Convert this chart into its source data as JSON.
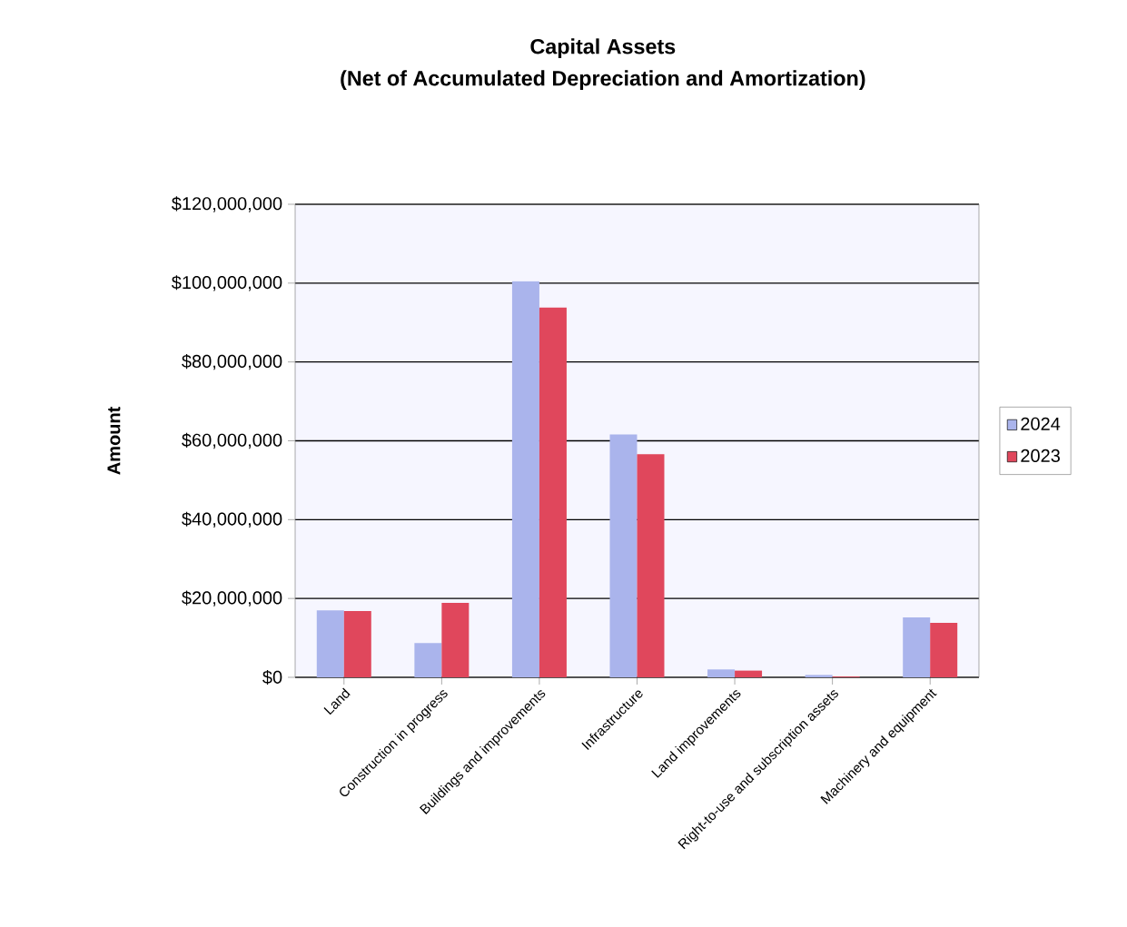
{
  "chart_data": {
    "type": "bar",
    "title": "Capital Assets",
    "subtitle": "(Net of Accumulated Depreciation and Amortization)",
    "ylabel": "Amount",
    "categories": [
      "Land",
      "Construction in progress",
      "Buildings and improvements",
      "Infrastructure",
      "Land improvements",
      "Right-to-use and subscription assets",
      "Machinery and equipment"
    ],
    "series": [
      {
        "name": "2024",
        "color": "#aab4ec",
        "values": [
          17000000,
          8700000,
          100500000,
          61600000,
          2000000,
          600000,
          15200000
        ]
      },
      {
        "name": "2023",
        "color": "#e0475c",
        "values": [
          16800000,
          18900000,
          93800000,
          56600000,
          1700000,
          200000,
          13800000
        ]
      }
    ],
    "ylim": [
      0,
      120000000
    ],
    "yticks": [
      {
        "value": 0,
        "label": "$0"
      },
      {
        "value": 20000000,
        "label": "$20,000,000"
      },
      {
        "value": 40000000,
        "label": "$40,000,000"
      },
      {
        "value": 60000000,
        "label": "$60,000,000"
      },
      {
        "value": 80000000,
        "label": "$80,000,000"
      },
      {
        "value": 100000000,
        "label": "$100,000,000"
      },
      {
        "value": 120000000,
        "label": "$120,000,000"
      }
    ],
    "grid": "y",
    "legend": "right"
  }
}
